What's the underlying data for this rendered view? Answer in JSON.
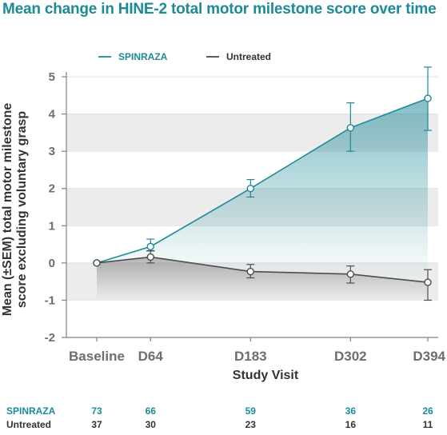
{
  "chart_data": {
    "type": "line",
    "title": "Mean change in HINE-2 total motor milestone score over time",
    "xlabel": "Study Visit",
    "ylabel_lines": [
      "Mean (±SEM) total motor milestone",
      "score excluding voluntary grasp"
    ],
    "categories": [
      "Baseline",
      "D64",
      "D183",
      "D302",
      "D394"
    ],
    "x": [
      0,
      64,
      183,
      302,
      394
    ],
    "ylim": [
      -2,
      5
    ],
    "yticks": [
      "-2",
      "-1",
      "0",
      "1",
      "2",
      "3",
      "4",
      "5"
    ],
    "legend_position": "top",
    "series": [
      {
        "name": "SPINRAZA",
        "color": "#1d8a97",
        "values": [
          0.0,
          0.44,
          2.0,
          3.63,
          4.42
        ],
        "err_low": [
          0.0,
          0.32,
          1.77,
          3.0,
          3.56
        ],
        "err_high": [
          0.0,
          0.64,
          2.24,
          4.3,
          5.26
        ],
        "n": [
          "73",
          "66",
          "59",
          "36",
          "26"
        ]
      },
      {
        "name": "Untreated",
        "color": "#4d4d4f",
        "values": [
          0.0,
          0.16,
          -0.23,
          -0.3,
          -0.52
        ],
        "err_low": [
          0.0,
          0.0,
          -0.4,
          -0.54,
          -1.0
        ],
        "err_high": [
          0.0,
          0.33,
          -0.04,
          -0.08,
          -0.18
        ],
        "n": [
          "37",
          "30",
          "23",
          "16",
          "11"
        ]
      }
    ]
  }
}
